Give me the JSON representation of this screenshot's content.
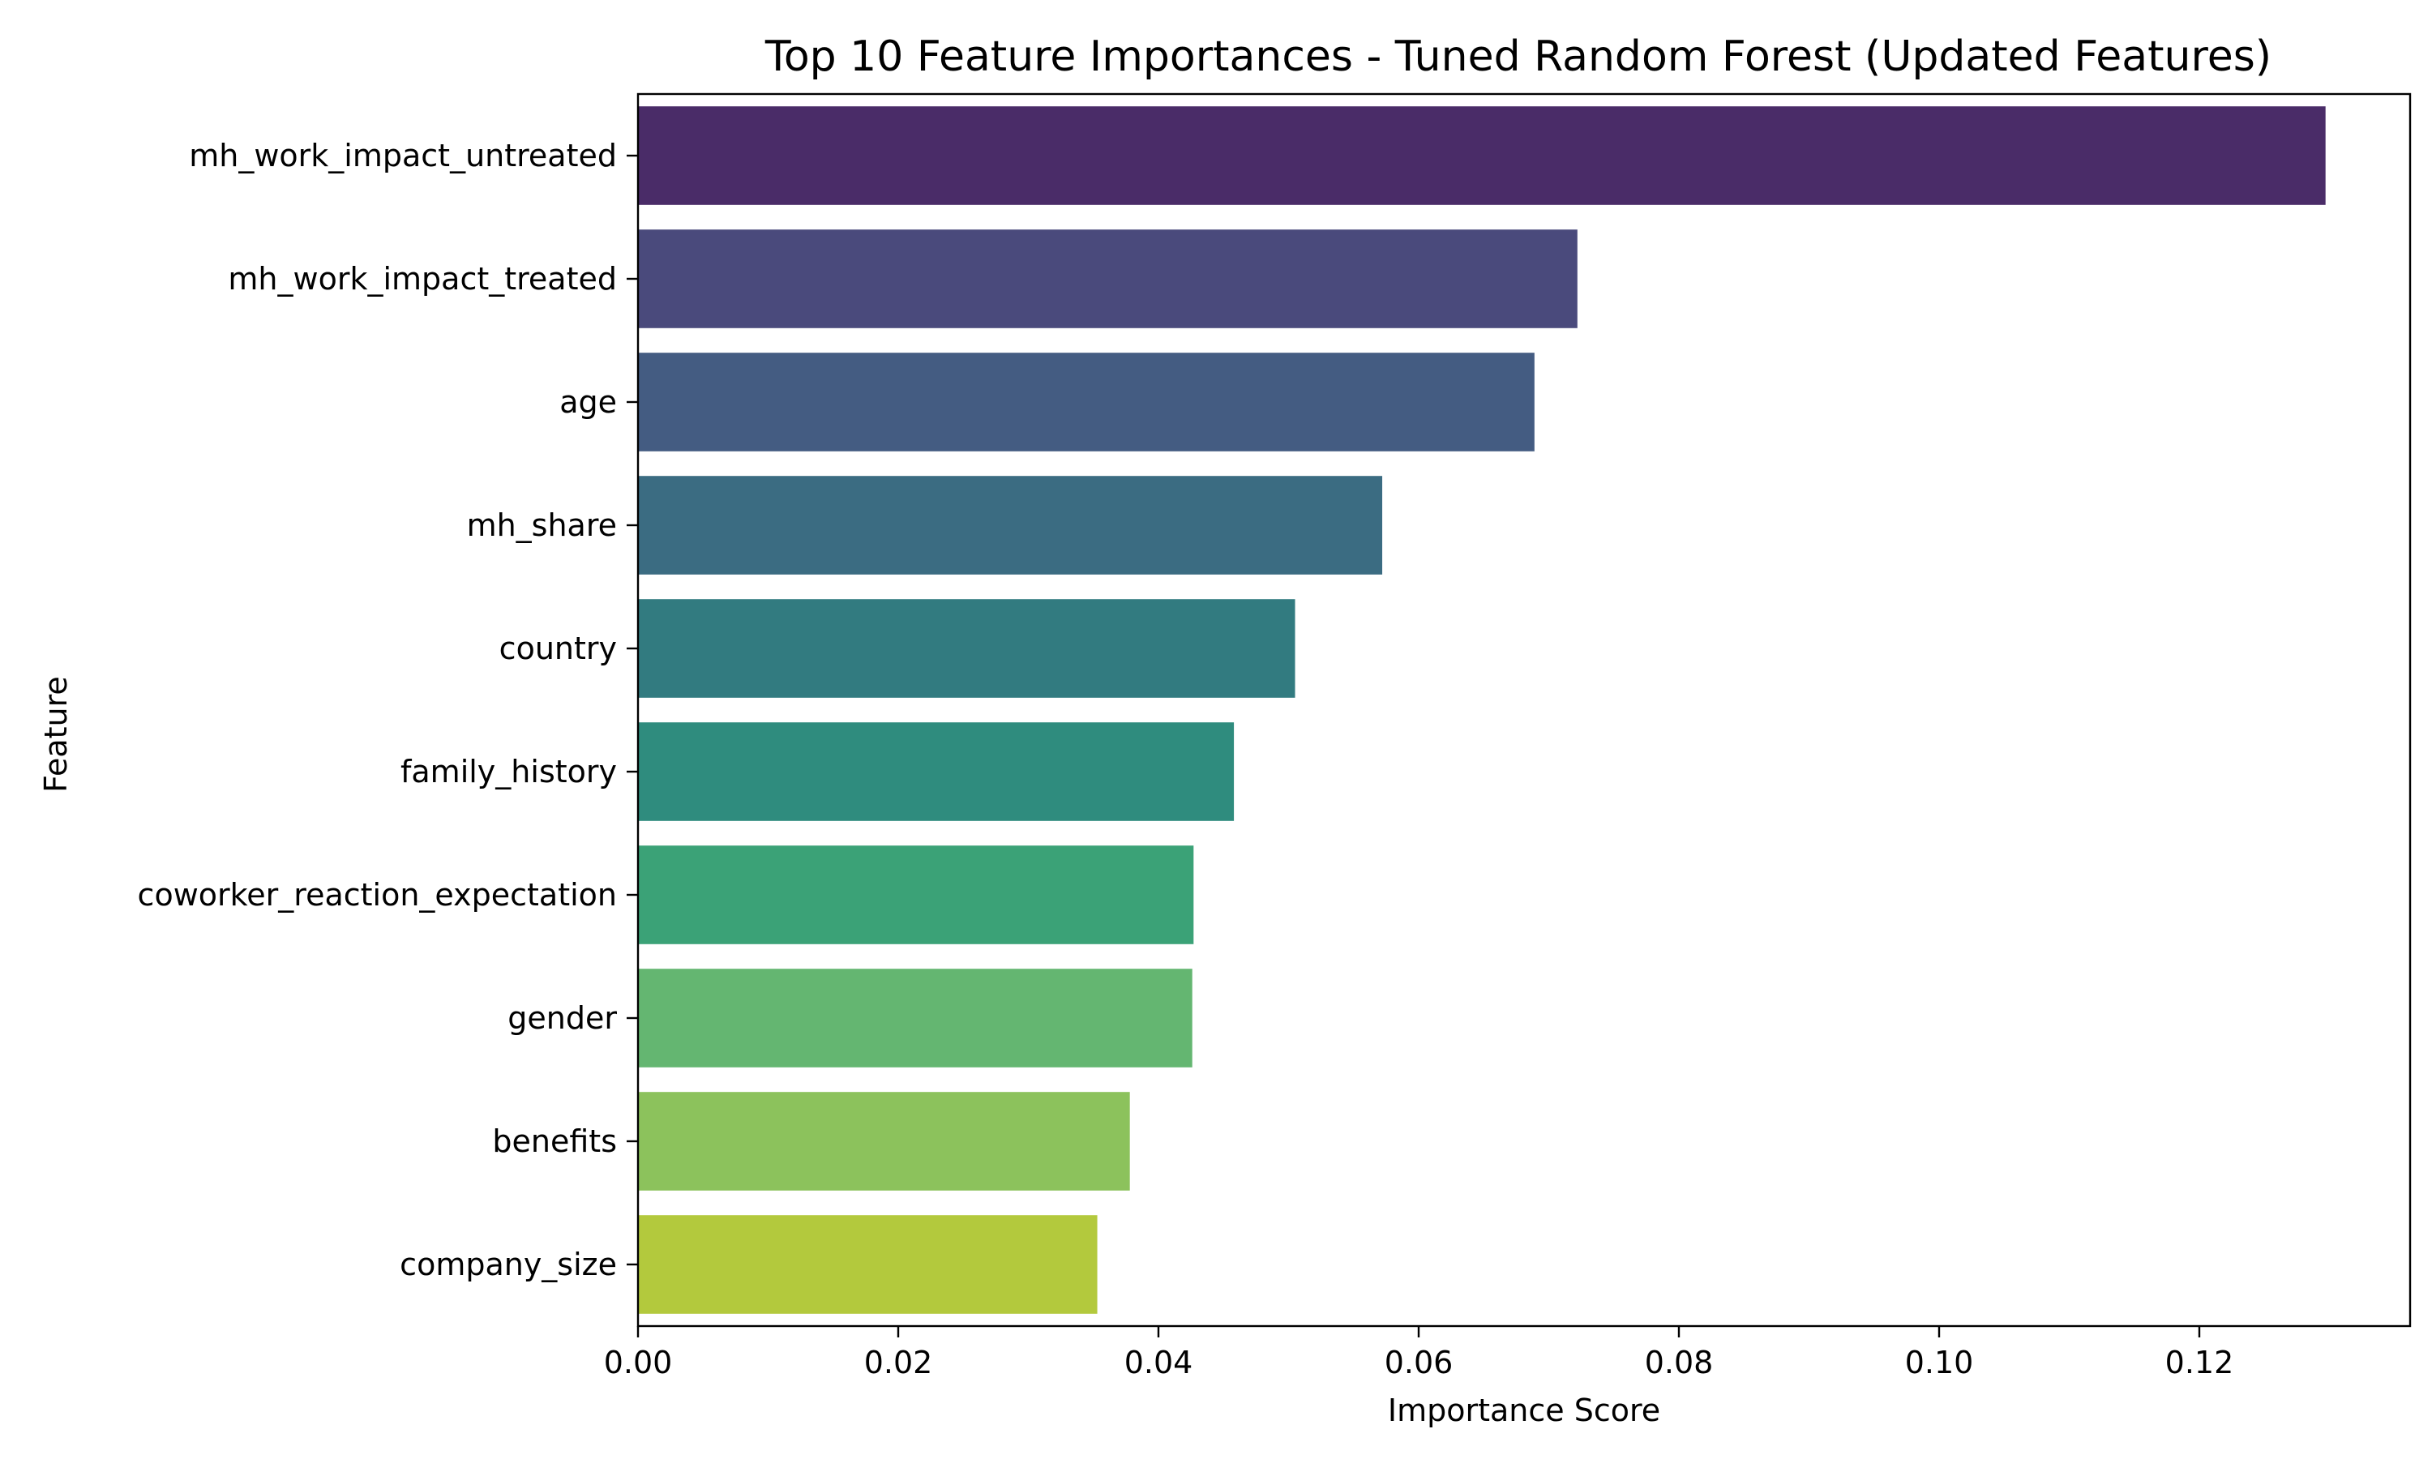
{
  "chart_data": {
    "type": "bar",
    "orientation": "horizontal",
    "title": "Top 10 Feature Importances - Tuned Random Forest (Updated Features)",
    "xlabel": "Importance Score",
    "ylabel": "Feature",
    "xlim": [
      0,
      0.1362
    ],
    "x_ticks": [
      0.0,
      0.02,
      0.04,
      0.06,
      0.08,
      0.1,
      0.12
    ],
    "x_tick_labels": [
      "0.00",
      "0.02",
      "0.04",
      "0.06",
      "0.08",
      "0.10",
      "0.12"
    ],
    "grid": false,
    "legend": "none",
    "categories": [
      "mh_work_impact_untreated",
      "mh_work_impact_treated",
      "age",
      "mh_share",
      "country",
      "family_history",
      "coworker_reaction_expectation",
      "gender",
      "benefits",
      "company_size"
    ],
    "values": [
      0.1297,
      0.0722,
      0.0689,
      0.0572,
      0.0505,
      0.0458,
      0.0427,
      0.0426,
      0.0378,
      0.0353
    ],
    "colors": [
      "#4a2c68",
      "#4a4a7c",
      "#445c82",
      "#3b6c82",
      "#327b80",
      "#2f8c7e",
      "#3ba277",
      "#64b671",
      "#8cc25c",
      "#b3c93d"
    ]
  }
}
